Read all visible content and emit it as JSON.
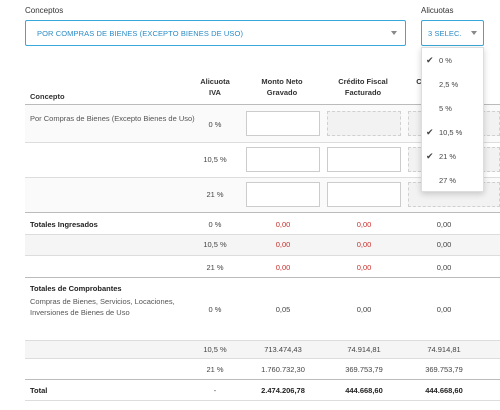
{
  "conceptos": {
    "label": "Conceptos",
    "value": "POR COMPRAS DE BIENES (EXCEPTO BIENES DE USO)"
  },
  "alicuotas": {
    "label": "Alicuotas",
    "value": "3 SELEC.",
    "options": [
      {
        "label": "0 %",
        "checked": true
      },
      {
        "label": "2,5 %",
        "checked": false
      },
      {
        "label": "5 %",
        "checked": false
      },
      {
        "label": "10,5 %",
        "checked": true
      },
      {
        "label": "21 %",
        "checked": true
      },
      {
        "label": "27 %",
        "checked": false
      }
    ],
    "check_glyph": "✔"
  },
  "table": {
    "headers": {
      "concepto": "Concepto",
      "alicuota": "Alicuota IVA",
      "monto": "Monto Neto Gravado",
      "credito": "Crédito Fiscal Facturado",
      "partial": "C"
    },
    "concept_rows": [
      {
        "concepto": "Por Compras de Bienes (Excepto Bienes de Uso)",
        "alicuota": "0 %"
      },
      {
        "concepto": "",
        "alicuota": "10,5 %"
      },
      {
        "concepto": "",
        "alicuota": "21 %"
      }
    ],
    "ingresados": {
      "label": "Totales Ingresados",
      "rows": [
        {
          "alicuota": "0 %",
          "monto": "0,00",
          "credito": "0,00",
          "computable": "0,00"
        },
        {
          "alicuota": "10,5 %",
          "monto": "0,00",
          "credito": "0,00",
          "computable": "0,00"
        },
        {
          "alicuota": "21 %",
          "monto": "0,00",
          "credito": "0,00",
          "computable": "0,00"
        }
      ]
    },
    "comprobantes": {
      "label": "Totales de Comprobantes",
      "sublabel": "Compras de Bienes, Servicios, Locaciones, Inversiones de Bienes de Uso",
      "rows": [
        {
          "alicuota": "0 %",
          "monto": "0,05",
          "credito": "0,00",
          "computable": "0,00"
        },
        {
          "alicuota": "10,5 %",
          "monto": "713.474,43",
          "credito": "74.914,81",
          "computable": "74.914,81"
        },
        {
          "alicuota": "21 %",
          "monto": "1.760.732,30",
          "credito": "369.753,79",
          "computable": "369.753,79"
        }
      ]
    },
    "total": {
      "label": "Total",
      "alicuota": "-",
      "monto": "2.474.206,78",
      "credito": "444.668,60",
      "computable": "444.668,60"
    }
  }
}
